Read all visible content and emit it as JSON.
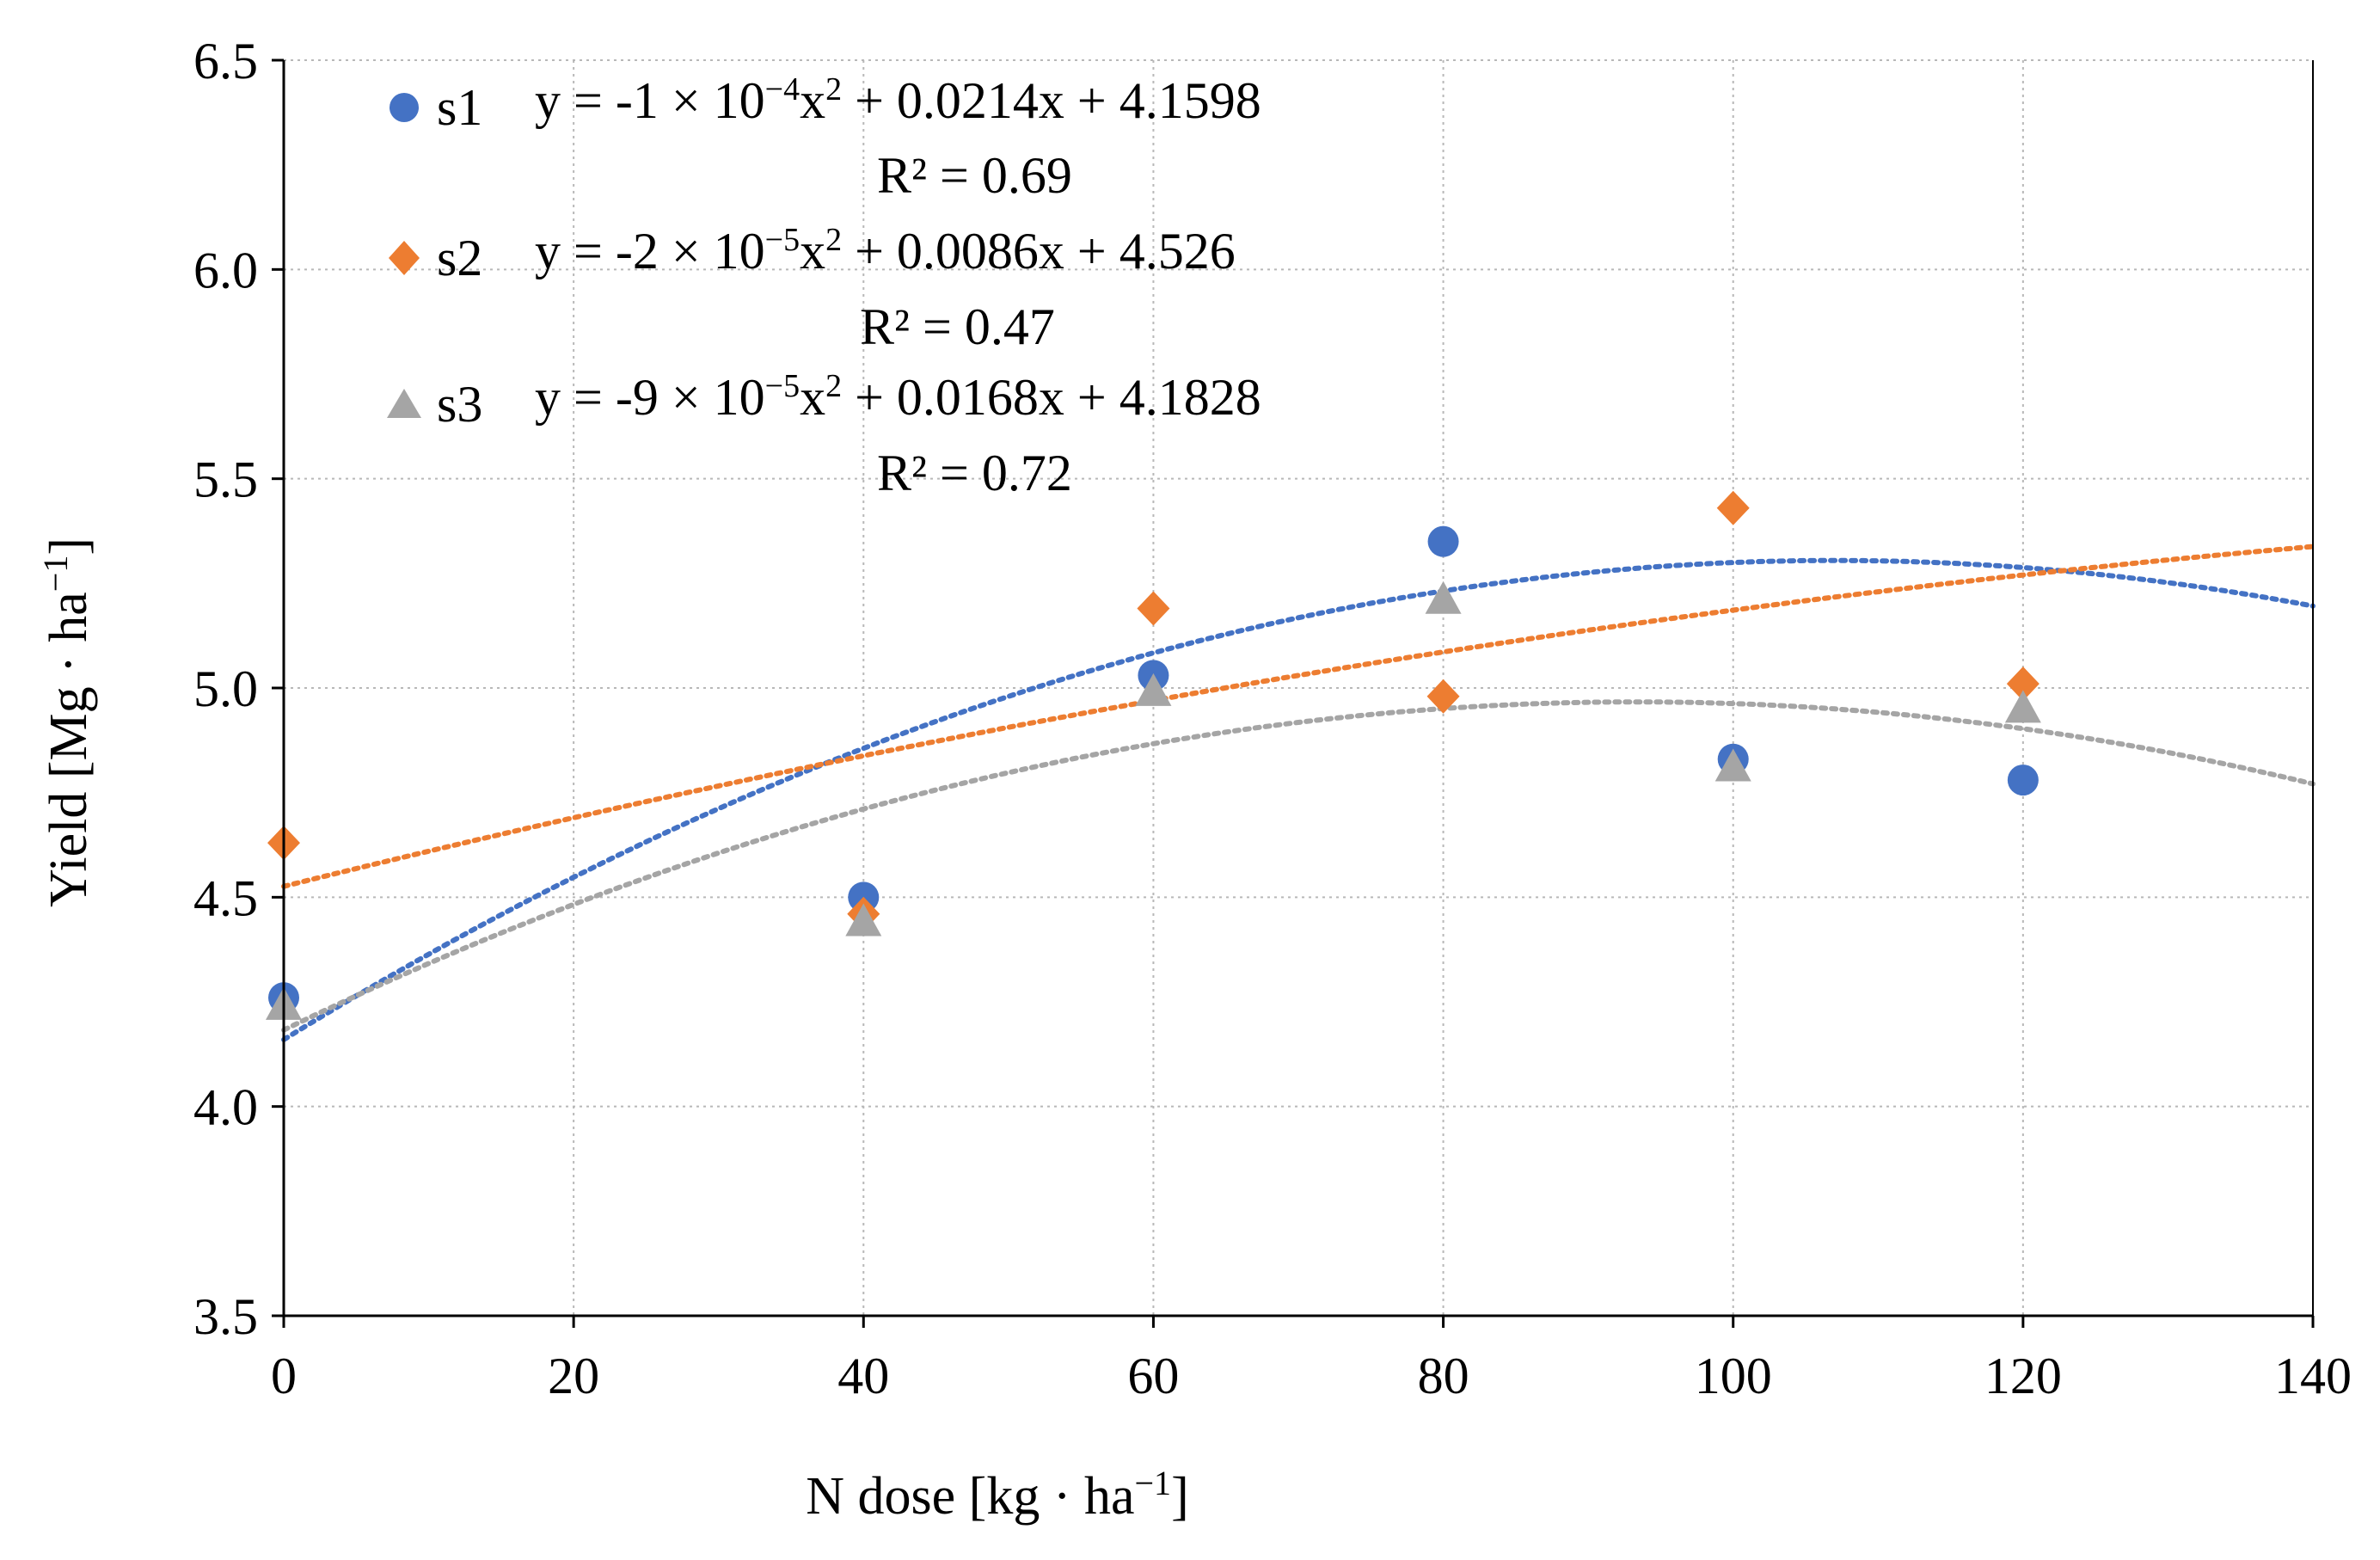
{
  "chart_data": {
    "type": "scatter",
    "title": "",
    "xlabel": "N dose [kg · ha⁻¹]",
    "xlabel_parts": {
      "main": "N dose [kg · ha",
      "sup": "−1",
      "end": "]"
    },
    "ylabel": "Yield [Mg · ha⁻¹]",
    "ylabel_parts": {
      "main": "Yield [Mg · ha",
      "sup": "−1",
      "end": "]"
    },
    "xlim": [
      0,
      140
    ],
    "ylim": [
      3.5,
      6.5
    ],
    "x_ticks": [
      0,
      20,
      40,
      60,
      80,
      100,
      120,
      140
    ],
    "x_tick_labels": [
      "0",
      "20",
      "40",
      "60",
      "80",
      "100",
      "120",
      "140"
    ],
    "y_ticks": [
      3.5,
      4.0,
      4.5,
      5.0,
      5.5,
      6.0,
      6.5
    ],
    "y_tick_labels": [
      "3.5",
      "4.0",
      "4.5",
      "5.0",
      "5.5",
      "6.0",
      "6.5"
    ],
    "grid": true,
    "legend_position": "top-left",
    "series": [
      {
        "name": "s1",
        "marker": "circle",
        "color": "#4472C4",
        "x": [
          0,
          40,
          60,
          80,
          100,
          120
        ],
        "y": [
          4.26,
          4.5,
          5.03,
          5.35,
          4.83,
          4.78
        ],
        "trendline": {
          "type": "polynomial",
          "order": 2,
          "coefficients": [
            -0.0001,
            0.0214,
            4.1598
          ]
        },
        "equation_parts": {
          "prefix": "y = -1 × 10",
          "exp": "−4",
          "mid": "x",
          "x_sup": "2",
          "suffix": " + 0.0214x + 4.1598"
        },
        "r2_label": "R² = 0.69"
      },
      {
        "name": "s2",
        "marker": "diamond",
        "color": "#ED7D31",
        "x": [
          0,
          40,
          60,
          80,
          100,
          120
        ],
        "y": [
          4.63,
          4.46,
          5.19,
          4.98,
          5.43,
          5.01
        ],
        "trendline": {
          "type": "polynomial",
          "order": 2,
          "coefficients": [
            -2e-05,
            0.0086,
            4.526
          ]
        },
        "equation_parts": {
          "prefix": "y = -2 × 10",
          "exp": "−5",
          "mid": "x",
          "x_sup": "2",
          "suffix": " + 0.0086x + 4.526"
        },
        "r2_label": "R² = 0.47"
      },
      {
        "name": "s3",
        "marker": "triangle",
        "color": "#A5A5A5",
        "x": [
          0,
          40,
          60,
          80,
          100,
          120
        ],
        "y": [
          4.24,
          4.44,
          4.99,
          5.21,
          4.81,
          4.95
        ],
        "trendline": {
          "type": "polynomial",
          "order": 2,
          "coefficients": [
            -9e-05,
            0.0168,
            4.1828
          ]
        },
        "equation_parts": {
          "prefix": "y = -9 × 10",
          "exp": "−5",
          "mid": "x",
          "x_sup": "2",
          "suffix": " + 0.0168x + 4.1828"
        },
        "r2_label": "R² = 0.72"
      }
    ]
  }
}
